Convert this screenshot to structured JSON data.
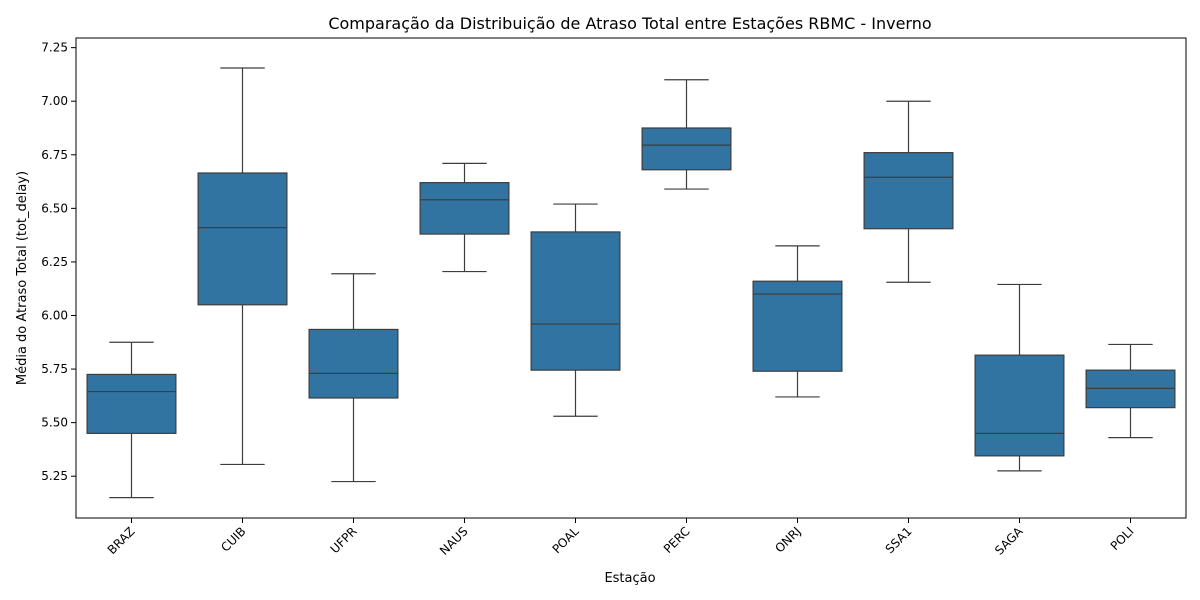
{
  "chart_data": {
    "type": "box",
    "title": "Comparação da Distribuição de Atraso Total entre Estações RBMC - Inverno",
    "xlabel": "Estação",
    "ylabel": "Média do Atraso Total (tot_delay)",
    "ylim": [
      5.055,
      7.295
    ],
    "yticks": [
      "5.25",
      "5.50",
      "5.75",
      "6.00",
      "6.25",
      "6.50",
      "6.75",
      "7.00",
      "7.25"
    ],
    "grid": false,
    "box_color": "#3274a1",
    "line_color": "#3d3d3d",
    "categories": [
      "BRAZ",
      "CUIB",
      "UFPR",
      "NAUS",
      "POAL",
      "PERC",
      "ONRJ",
      "SSA1",
      "SAGA",
      "POLI"
    ],
    "boxes": [
      {
        "whisker_low": 5.15,
        "q1": 5.45,
        "median": 5.645,
        "q3": 5.725,
        "whisker_high": 5.875
      },
      {
        "whisker_low": 5.305,
        "q1": 6.05,
        "median": 6.41,
        "q3": 6.665,
        "whisker_high": 7.155
      },
      {
        "whisker_low": 5.225,
        "q1": 5.615,
        "median": 5.73,
        "q3": 5.935,
        "whisker_high": 6.195
      },
      {
        "whisker_low": 6.205,
        "q1": 6.38,
        "median": 6.54,
        "q3": 6.62,
        "whisker_high": 6.71
      },
      {
        "whisker_low": 5.53,
        "q1": 5.745,
        "median": 5.96,
        "q3": 6.39,
        "whisker_high": 6.52
      },
      {
        "whisker_low": 6.59,
        "q1": 6.68,
        "median": 6.795,
        "q3": 6.875,
        "whisker_high": 7.1
      },
      {
        "whisker_low": 5.62,
        "q1": 5.74,
        "median": 6.1,
        "q3": 6.16,
        "whisker_high": 6.325
      },
      {
        "whisker_low": 6.155,
        "q1": 6.405,
        "median": 6.645,
        "q3": 6.76,
        "whisker_high": 7.0
      },
      {
        "whisker_low": 5.275,
        "q1": 5.345,
        "median": 5.45,
        "q3": 5.815,
        "whisker_high": 6.145
      },
      {
        "whisker_low": 5.43,
        "q1": 5.57,
        "median": 5.66,
        "q3": 5.745,
        "whisker_high": 5.865
      }
    ]
  }
}
